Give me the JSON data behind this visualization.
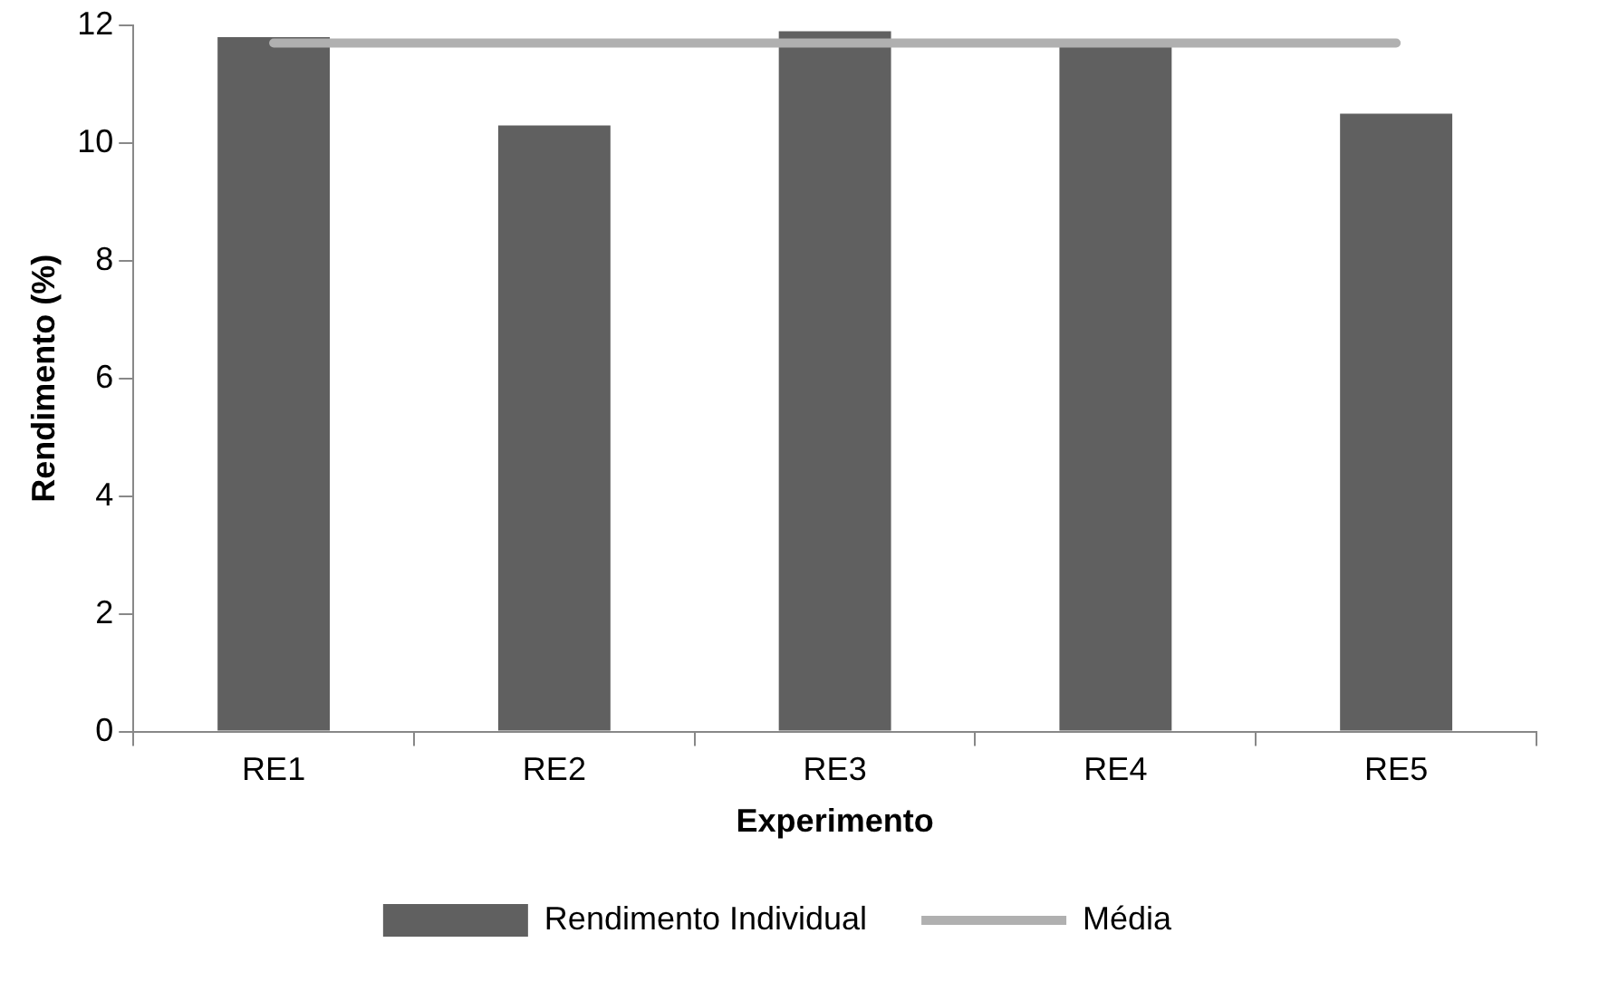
{
  "chart_data": {
    "type": "bar",
    "xlabel": "Experimento",
    "ylabel": "Rendimento (%)",
    "categories": [
      "RE1",
      "RE2",
      "RE3",
      "RE4",
      "RE5"
    ],
    "series": [
      {
        "name": "Rendimento Individual",
        "color": "#606060",
        "values": [
          11.8,
          10.3,
          11.9,
          11.7,
          10.5
        ]
      },
      {
        "name": "Média",
        "type": "line",
        "color": "#b0b0b0",
        "values": [
          11.7,
          11.7,
          11.7,
          11.7,
          11.7
        ]
      }
    ],
    "ylim": [
      0,
      12
    ],
    "yticks": [
      0,
      2,
      4,
      6,
      8,
      10,
      12
    ],
    "grid": false,
    "legend": "bottom",
    "marker": "none"
  }
}
